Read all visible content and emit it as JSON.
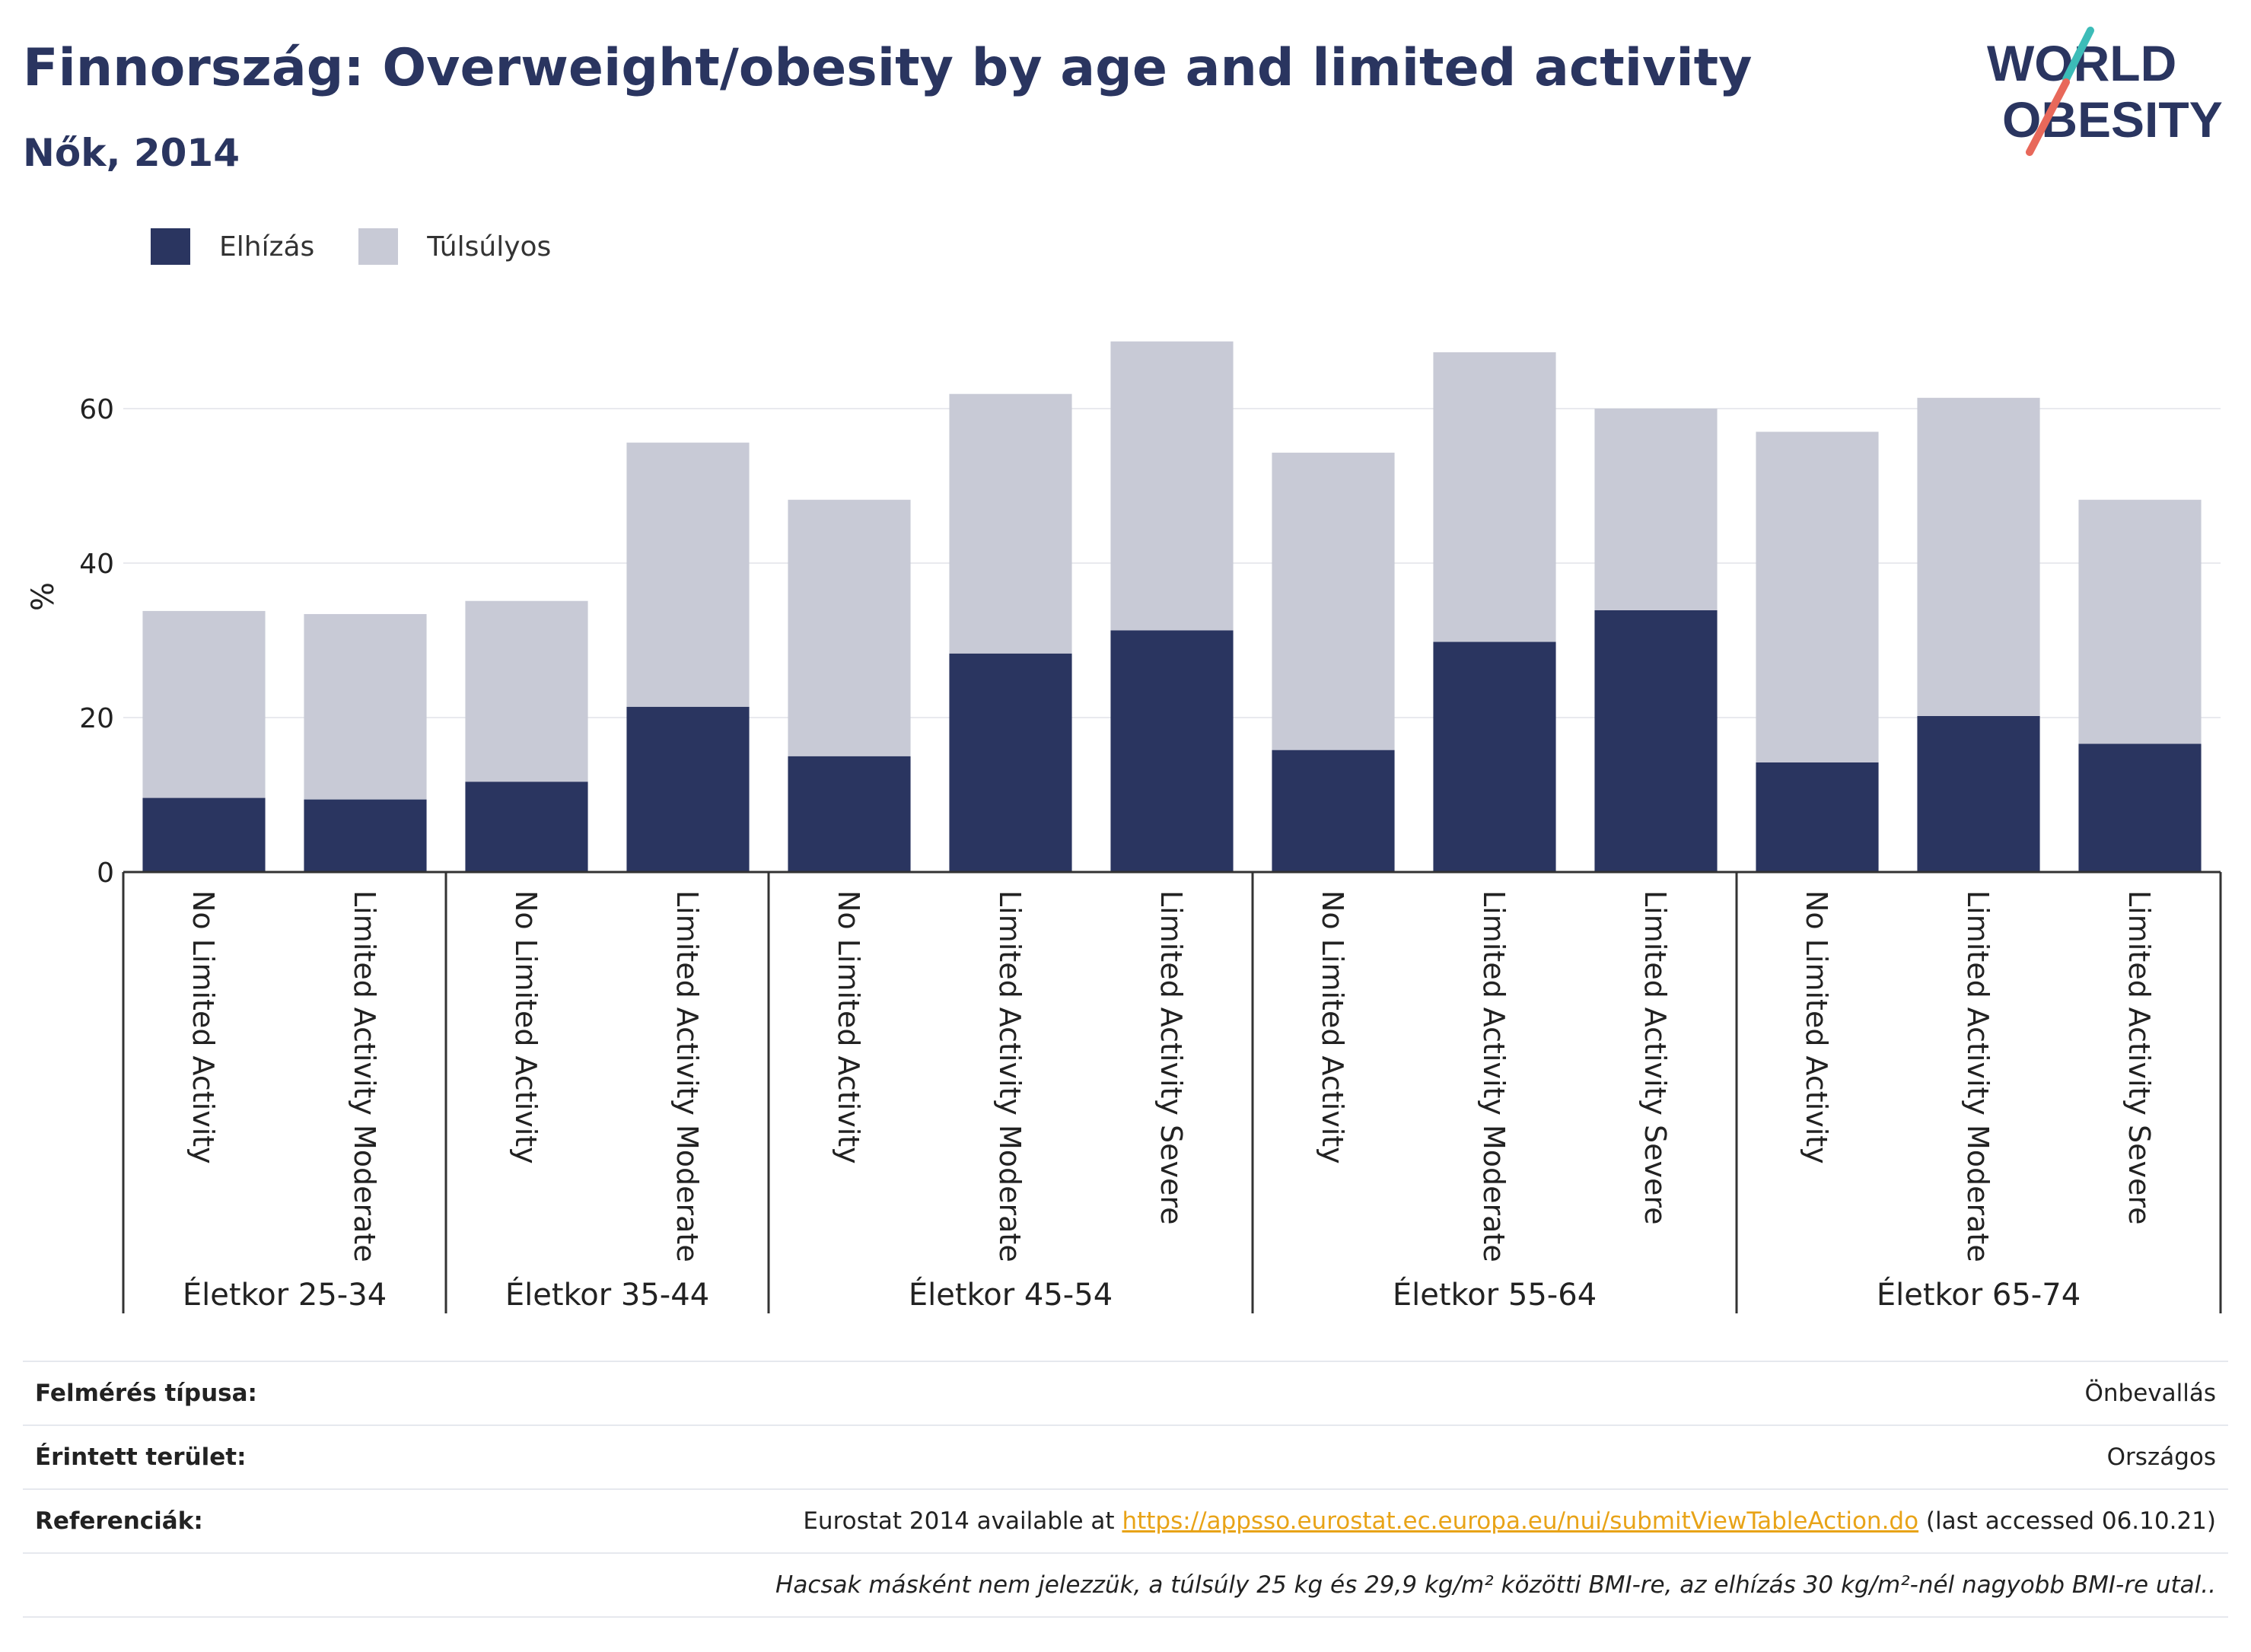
{
  "header": {
    "title": "Finnország: Overweight/obesity by age and limited activity",
    "subtitle": "Nők, 2014"
  },
  "logo": {
    "line1": "WORLD",
    "line2": "OBESITY",
    "accent_teal": "#3cbcb8",
    "accent_red": "#e8685a"
  },
  "colors": {
    "obese": "#2a3560",
    "overweight": "#c8cad6",
    "grid": "#e9eaee",
    "axis": "#333333"
  },
  "chart_data": {
    "type": "bar",
    "stacked": true,
    "ylabel": "%",
    "ylim": [
      0,
      72
    ],
    "yticks": [
      0,
      20,
      40,
      60
    ],
    "grid": true,
    "legend_position": "top-left",
    "groups": [
      {
        "label": "Életkor 25-34",
        "categories": [
          "No Limited Activity",
          "Limited Activity Moderate"
        ]
      },
      {
        "label": "Életkor 35-44",
        "categories": [
          "No Limited Activity",
          "Limited Activity Moderate"
        ]
      },
      {
        "label": "Életkor 45-54",
        "categories": [
          "No Limited Activity",
          "Limited Activity Moderate",
          "Limited Activity Severe"
        ]
      },
      {
        "label": "Életkor 55-64",
        "categories": [
          "No Limited Activity",
          "Limited Activity Moderate",
          "Limited Activity Severe"
        ]
      },
      {
        "label": "Életkor 65-74",
        "categories": [
          "No Limited Activity",
          "Limited Activity Moderate",
          "Limited Activity Severe"
        ]
      }
    ],
    "series": [
      {
        "name": "Elhízás",
        "color": "#2a3560",
        "values": [
          9.6,
          9.4,
          11.7,
          21.4,
          15.0,
          28.3,
          31.3,
          15.8,
          29.8,
          33.9,
          14.2,
          20.2,
          16.6
        ]
      },
      {
        "name": "Túlsúlyos",
        "color": "#c8cad6",
        "values": [
          24.2,
          24.0,
          23.4,
          34.2,
          33.2,
          33.6,
          37.4,
          38.5,
          37.5,
          26.1,
          42.8,
          41.2,
          31.6
        ]
      }
    ]
  },
  "footer": {
    "rows": [
      {
        "label": "Felmérés típusa:",
        "value": "Önbevallás"
      },
      {
        "label": "Érintett terület:",
        "value": "Országos"
      }
    ],
    "reference": {
      "label": "Referenciák:",
      "prefix": "Eurostat 2014 available at ",
      "link": "https://appsso.eurostat.ec.europa.eu/nui/submitViewTableAction.do",
      "suffix": " (last accessed 06.10.21)"
    },
    "note": "Hacsak másként nem jelezzük, a túlsúly 25 kg és 29,9 kg/m² közötti BMI-re, az elhízás 30 kg/m²-nél nagyobb BMI-re utal.."
  }
}
